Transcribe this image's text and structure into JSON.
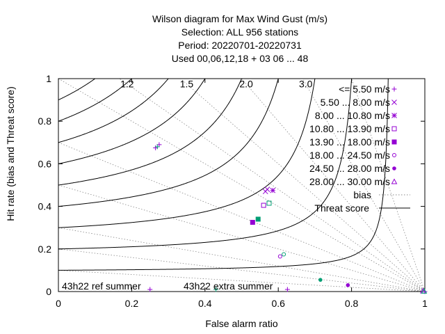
{
  "chart_data": {
    "type": "scatter",
    "title_lines": [
      "Wilson diagram  for Max Wind Gust (m/s)",
      "Selection: ALL    956 stations",
      "Period: 20220701-20220731",
      "Used  00,06,12,18  + 03 06 ... 48"
    ],
    "xlabel": "False alarm ratio",
    "ylabel": "Hit rate (bias and Threat score)",
    "xlim": [
      0,
      1
    ],
    "ylim": [
      0,
      1
    ],
    "x_ticks": [
      0,
      0.2,
      0.4,
      0.6,
      0.8,
      1
    ],
    "x_tick_labels": [
      "0",
      "0.2",
      "0.4",
      "0.6",
      "0.8",
      "1"
    ],
    "y_ticks": [
      0,
      0.2,
      0.4,
      0.6,
      0.8,
      1
    ],
    "y_tick_labels": [
      "0",
      "0.2",
      "0.4",
      "0.6",
      "0.8",
      "1"
    ],
    "bias_values": [
      1.2,
      1.5,
      2.0,
      3.0
    ],
    "bias_labels": [
      "1.2",
      "1.5",
      "2.0",
      "3.0"
    ],
    "bias_line_values": [
      0.1,
      0.2,
      0.3,
      0.5,
      0.7,
      1.0,
      1.2,
      1.5,
      2.0,
      3.0,
      5.0
    ],
    "threat_score_values": [
      0.1,
      0.2,
      0.3,
      0.4,
      0.5,
      0.6,
      0.7,
      0.8,
      0.9
    ],
    "legend": {
      "position": "top-right",
      "bias_label": "bias",
      "threat_label": "Threat score"
    },
    "series": [
      {
        "name": "<= 5.50 m/s",
        "marker": "plus",
        "color": "#9400D3",
        "points": [
          [
            0.275,
            0.69
          ],
          [
            0.265,
            0.675
          ],
          [
            0.25,
            0.01
          ],
          [
            0.625,
            0.01
          ],
          [
            1.0,
            0.0
          ]
        ]
      },
      {
        "name": "5.50 ... 8.00 m/s",
        "marker": "cross",
        "color": "#9400D3",
        "points": [
          [
            0.565,
            0.47
          ],
          [
            0.57,
            0.48
          ]
        ]
      },
      {
        "name": "8.00 ... 10.80 m/s",
        "marker": "asterisk",
        "color": "#9400D3",
        "points": [
          [
            0.585,
            0.475
          ]
        ]
      },
      {
        "name": "10.80 ... 13.90 m/s",
        "marker": "square-open",
        "color": "#9400D3",
        "points": [
          [
            0.56,
            0.405
          ]
        ]
      },
      {
        "name": "13.90 ... 18.00 m/s",
        "marker": "square-filled",
        "color": "#9400D3",
        "points": [
          [
            0.53,
            0.325
          ]
        ]
      },
      {
        "name": "18.00 ... 24.50 m/s",
        "marker": "circle-open",
        "color": "#9400D3",
        "points": [
          [
            0.605,
            0.165
          ]
        ]
      },
      {
        "name": "24.50 ... 28.00 m/s",
        "marker": "circle-filled",
        "color": "#9400D3",
        "points": [
          [
            0.79,
            0.03
          ]
        ]
      },
      {
        "name": "28.00 ... 30.00 m/s",
        "marker": "triangle-open",
        "color": "#9400D3",
        "points": [
          [
            0.995,
            0.003
          ]
        ]
      },
      {
        "name": "",
        "marker": "plus",
        "color": "#009E73",
        "points": [
          [
            0.27,
            0.68
          ],
          [
            0.43,
            0.01
          ]
        ]
      },
      {
        "name": "",
        "marker": "square-open",
        "color": "#009E73",
        "points": [
          [
            0.575,
            0.415
          ]
        ]
      },
      {
        "name": "",
        "marker": "square-filled",
        "color": "#009E73",
        "points": [
          [
            0.545,
            0.34
          ]
        ]
      },
      {
        "name": "",
        "marker": "circle-open",
        "color": "#009E73",
        "points": [
          [
            0.615,
            0.175
          ]
        ]
      },
      {
        "name": "",
        "marker": "circle-filled",
        "color": "#009E73",
        "points": [
          [
            0.715,
            0.055
          ]
        ]
      },
      {
        "name": "",
        "marker": "triangle-open",
        "color": "#009E73",
        "points": [
          [
            0.998,
            0.002
          ]
        ]
      }
    ],
    "annotations": [
      {
        "text": "43h22 ref summer",
        "color": "#9400D3"
      },
      {
        "text": "43h22 extra summer",
        "color": "#009E73"
      }
    ],
    "grid": false
  }
}
